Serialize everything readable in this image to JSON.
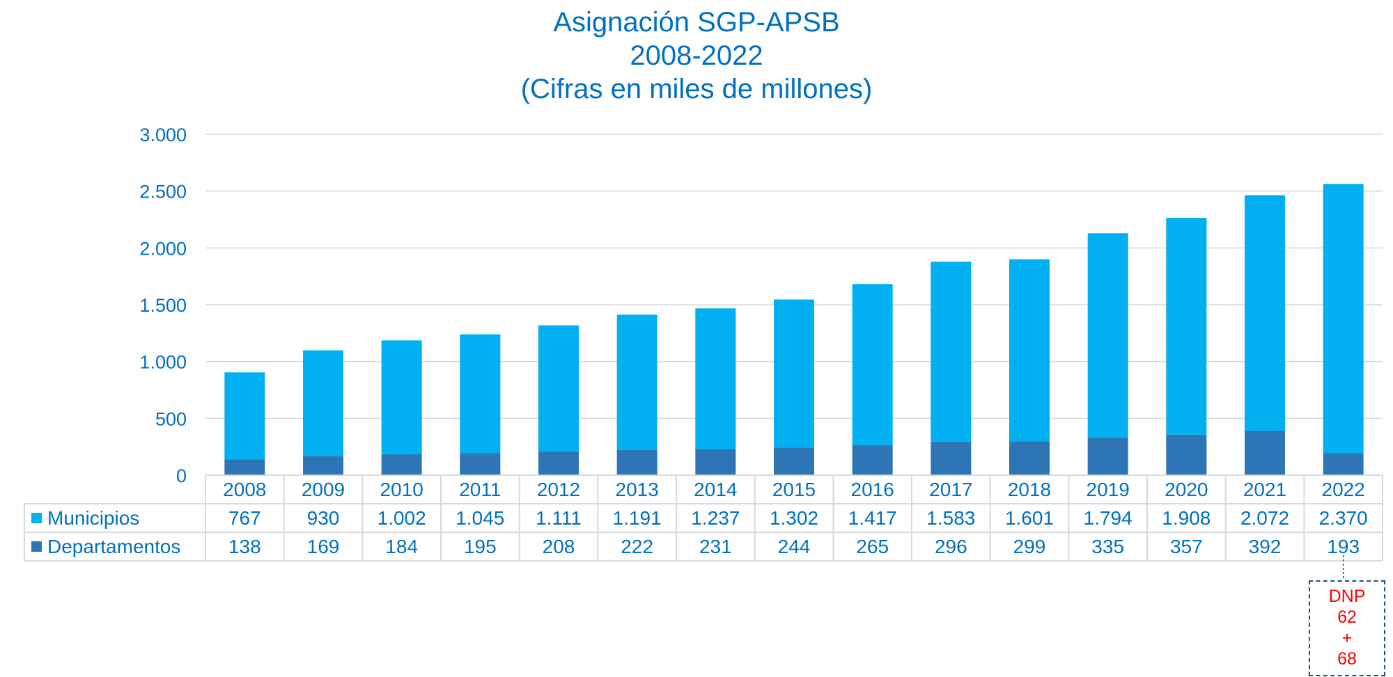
{
  "title_lines": [
    "Asignación SGP-APSB",
    "2008-2022",
    "(Cifras en miles de millones)"
  ],
  "colors": {
    "municipios": "#00B0F0",
    "departamentos": "#2E75B6",
    "text": "#0070C0",
    "grid": "#D9D9D9",
    "note": "#FF0000"
  },
  "chart_data": {
    "type": "bar",
    "stacked": true,
    "categories": [
      "2008",
      "2009",
      "2010",
      "2011",
      "2012",
      "2013",
      "2014",
      "2015",
      "2016",
      "2017",
      "2018",
      "2019",
      "2020",
      "2021",
      "2022"
    ],
    "series": [
      {
        "name": "Departamentos",
        "values": [
          138,
          169,
          184,
          195,
          208,
          222,
          231,
          244,
          265,
          296,
          299,
          335,
          357,
          392,
          193
        ]
      },
      {
        "name": "Municipios",
        "values": [
          767,
          930,
          1002,
          1045,
          1111,
          1191,
          1237,
          1302,
          1417,
          1583,
          1601,
          1794,
          1908,
          2072,
          2370
        ]
      }
    ],
    "series_labels": {
      "Municipios": [
        "767",
        "930",
        "1.002",
        "1.045",
        "1.111",
        "1.191",
        "1.237",
        "1.302",
        "1.417",
        "1.583",
        "1.601",
        "1.794",
        "1.908",
        "2.072",
        "2.370"
      ],
      "Departamentos": [
        "138",
        "169",
        "184",
        "195",
        "208",
        "222",
        "231",
        "244",
        "265",
        "296",
        "299",
        "335",
        "357",
        "392",
        "193"
      ]
    },
    "ylim": [
      0,
      3000
    ],
    "yticks": [
      0,
      500,
      1000,
      1500,
      2000,
      2500,
      3000
    ],
    "ytick_labels": [
      "0",
      "500",
      "1.000",
      "1.500",
      "2.000",
      "2.500",
      "3.000"
    ],
    "grid": true,
    "legend": "data-table"
  },
  "annotation": {
    "category": "2022",
    "lines": [
      "DNP",
      "62",
      "+",
      "68"
    ]
  }
}
